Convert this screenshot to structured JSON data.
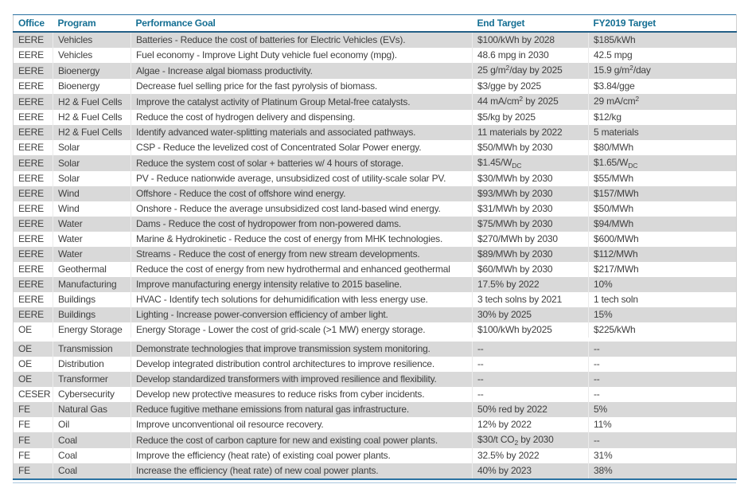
{
  "colors": {
    "header_text": "#156f93",
    "rule_blue": "#2a72a2",
    "header_underline": "#235f87",
    "row_alt_bg": "#d9d9d9",
    "body_text": "#3f3f3f",
    "outer_edge_gray": "#cfcfcf",
    "bottom_thin_rule": "#a8c6dd"
  },
  "table": {
    "columns": [
      {
        "key": "office",
        "label": "Office"
      },
      {
        "key": "program",
        "label": "Program"
      },
      {
        "key": "goal",
        "label": "Performance Goal"
      },
      {
        "key": "end_target",
        "label": "End Target"
      },
      {
        "key": "fy2019_target",
        "label": "FY2019 Target"
      }
    ],
    "rows": [
      {
        "office": "EERE",
        "program": "Vehicles",
        "goal": "Batteries - Reduce the cost of batteries for Electric Vehicles (EVs).",
        "end_target": "$100/kWh by 2028",
        "fy2019_target": "$185/kWh"
      },
      {
        "office": "EERE",
        "program": "Vehicles",
        "goal": "Fuel economy - Improve Light Duty vehicle fuel economy (mpg).",
        "end_target": "48.6 mpg in 2030",
        "fy2019_target": "42.5 mpg"
      },
      {
        "office": "EERE",
        "program": "Bioenergy",
        "goal": "Algae - Increase algal biomass productivity.",
        "end_target": "25 g/m^{2}/day by 2025",
        "fy2019_target": "15.9 g/m^{2}/day"
      },
      {
        "office": "EERE",
        "program": "Bioenergy",
        "goal": "Decrease fuel selling price for the fast pyrolysis of biomass.",
        "end_target": "$3/gge by 2025",
        "fy2019_target": "$3.84/gge"
      },
      {
        "office": "EERE",
        "program": "H2 & Fuel Cells",
        "goal": "Improve the catalyst activity of Platinum Group Metal-free catalysts.",
        "end_target": "44 mA/cm^{2} by 2025",
        "fy2019_target": "29 mA/cm^{2}"
      },
      {
        "office": "EERE",
        "program": "H2 & Fuel Cells",
        "goal": "Reduce the cost of hydrogen delivery and dispensing.",
        "end_target": "$5/kg by 2025",
        "fy2019_target": "$12/kg"
      },
      {
        "office": "EERE",
        "program": "H2 & Fuel Cells",
        "goal": "Identify advanced water-splitting materials and associated pathways.",
        "end_target": "11 materials by 2022",
        "fy2019_target": "5 materials"
      },
      {
        "office": "EERE",
        "program": "Solar",
        "goal": "CSP - Reduce the levelized cost of Concentrated Solar Power energy.",
        "end_target": "$50/MWh by 2030",
        "fy2019_target": "$80/MWh"
      },
      {
        "office": "EERE",
        "program": "Solar",
        "goal": "Reduce the system cost of solar + batteries w/ 4 hours of storage.",
        "end_target": "$1.45/W_{DC}",
        "fy2019_target": "$1.65/W_{DC}"
      },
      {
        "office": "EERE",
        "program": "Solar",
        "goal": "PV - Reduce nationwide average, unsubsidized cost of utility-scale solar PV.",
        "end_target": "$30/MWh by 2030",
        "fy2019_target": "$55/MWh"
      },
      {
        "office": "EERE",
        "program": "Wind",
        "goal": "Offshore - Reduce the cost of offshore wind energy.",
        "end_target": "$93/MWh by 2030",
        "fy2019_target": "$157/MWh"
      },
      {
        "office": "EERE",
        "program": "Wind",
        "goal": "Onshore - Reduce the average unsubsidized cost land-based wind energy.",
        "end_target": "$31/MWh by 2030",
        "fy2019_target": "$50/MWh"
      },
      {
        "office": "EERE",
        "program": "Water",
        "goal": "Dams - Reduce the cost of hydropower from non-powered dams.",
        "end_target": "$75/MWh by 2030",
        "fy2019_target": "$94/MWh"
      },
      {
        "office": "EERE",
        "program": "Water",
        "goal": "Marine & Hydrokinetic - Reduce the cost of energy from MHK technologies.",
        "end_target": "$270/MWh by 2030",
        "fy2019_target": "$600/MWh"
      },
      {
        "office": "EERE",
        "program": "Water",
        "goal": "Streams - Reduce the cost of energy from new stream developments.",
        "end_target": "$89/MWh by 2030",
        "fy2019_target": "$112/MWh"
      },
      {
        "office": "EERE",
        "program": "Geothermal",
        "goal": "Reduce the cost of energy from new hydrothermal and enhanced geothermal",
        "end_target": "$60/MWh by 2030",
        "fy2019_target": "$217/MWh"
      },
      {
        "office": "EERE",
        "program": "Manufacturing",
        "goal": "Improve manufacturing energy intensity relative to 2015 baseline.",
        "end_target": "17.5% by 2022",
        "fy2019_target": "10%"
      },
      {
        "office": "EERE",
        "program": "Buildings",
        "goal": "HVAC - Identify tech solutions for dehumidification with less energy use.",
        "end_target": "3 tech solns by 2021",
        "fy2019_target": "1 tech soln"
      },
      {
        "office": "EERE",
        "program": "Buildings",
        "goal": "Lighting - Increase power-conversion efficiency of amber light.",
        "end_target": "30% by 2025",
        "fy2019_target": "15%"
      },
      {
        "office": "OE",
        "program": "Energy Storage",
        "goal": "Energy Storage - Lower the cost of grid-scale (>1 MW) energy storage.",
        "end_target": "$100/kWh by2025",
        "fy2019_target": "$225/kWh",
        "gap_after": true
      },
      {
        "office": "OE",
        "program": "Transmission",
        "goal": "Demonstrate technologies that improve transmission system monitoring.",
        "end_target": "--",
        "fy2019_target": "--"
      },
      {
        "office": "OE",
        "program": "Distribution",
        "goal": "Develop integrated distribution control architectures to improve resilience.",
        "end_target": "--",
        "fy2019_target": "--"
      },
      {
        "office": "OE",
        "program": "Transformer",
        "goal": "Develop standardized transformers with improved resilience and flexibility.",
        "end_target": "--",
        "fy2019_target": "--"
      },
      {
        "office": "CESER",
        "program": "Cybersecurity",
        "goal": "Develop new protective measures to reduce risks from cyber incidents.",
        "end_target": "--",
        "fy2019_target": "--"
      },
      {
        "office": "FE",
        "program": "Natural Gas",
        "goal": "Reduce fugitive methane emissions from natural gas infrastructure.",
        "end_target": "50% red by 2022",
        "fy2019_target": "5%"
      },
      {
        "office": "FE",
        "program": "Oil",
        "goal": "Improve unconventional oil resource recovery.",
        "end_target": "12% by 2022",
        "fy2019_target": "11%"
      },
      {
        "office": "FE",
        "program": "Coal",
        "goal": "Reduce the cost of carbon capture for new and existing coal power plants.",
        "end_target": "$30/t CO_{2} by 2030",
        "fy2019_target": "--"
      },
      {
        "office": "FE",
        "program": "Coal",
        "goal": "Improve the efficiency (heat rate) of existing coal power plants.",
        "end_target": "32.5% by 2022",
        "fy2019_target": "31%"
      },
      {
        "office": "FE",
        "program": "Coal",
        "goal": "Increase the efficiency (heat rate) of new coal power plants.",
        "end_target": "40% by 2023",
        "fy2019_target": "38%"
      }
    ]
  }
}
